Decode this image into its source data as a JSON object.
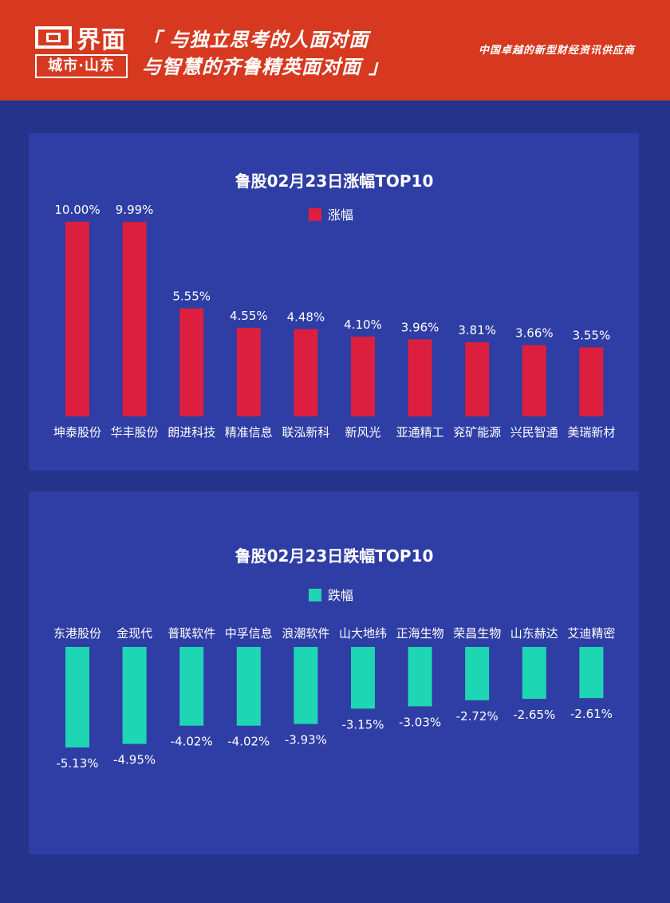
{
  "header": {
    "logo_name": "界面",
    "logo_sub": "城市·山东",
    "slogan_line1": "「 与独立思考的人面对面",
    "slogan_line2": "与智慧的齐鲁精英面对面 」",
    "tagline": "中国卓越的新型财经资讯供应商"
  },
  "colors": {
    "header_bg": "#d6391f",
    "page_bg": "#25348a",
    "panel_bg": "#2e3ea4",
    "gain_bar": "#dc1f3e",
    "loss_bar": "#1fd6b4"
  },
  "chart_data": [
    {
      "type": "bar",
      "title": "鲁股02月23日涨幅TOP10",
      "legend": "top-center",
      "series": [
        {
          "name": "涨幅",
          "values": [
            10.0,
            9.99,
            5.55,
            4.55,
            4.48,
            4.1,
            3.96,
            3.81,
            3.66,
            3.55
          ],
          "labels": [
            "10.00%",
            "9.99%",
            "5.55%",
            "4.55%",
            "4.48%",
            "4.10%",
            "3.96%",
            "3.81%",
            "3.66%",
            "3.55%"
          ]
        }
      ],
      "categories": [
        "坤泰股份",
        "华丰股份",
        "朗进科技",
        "精准信息",
        "联泓新科",
        "新风光",
        "亚通精工",
        "兖矿能源",
        "兴民智通",
        "美瑞新材"
      ],
      "ylim": [
        0,
        10
      ],
      "grid": false
    },
    {
      "type": "bar",
      "title": "鲁股02月23日跌幅TOP10",
      "legend": "top-center",
      "series": [
        {
          "name": "跌幅",
          "values": [
            -5.13,
            -4.95,
            -4.02,
            -4.02,
            -3.93,
            -3.15,
            -3.03,
            -2.72,
            -2.65,
            -2.61
          ],
          "labels": [
            "-5.13%",
            "-4.95%",
            "-4.02%",
            "-4.02%",
            "-3.93%",
            "-3.15%",
            "-3.03%",
            "-2.72%",
            "-2.65%",
            "-2.61%"
          ]
        }
      ],
      "categories": [
        "东港股份",
        "金现代",
        "普联软件",
        "中孚信息",
        "浪潮软件",
        "山大地纬",
        "正海生物",
        "荣昌生物",
        "山东赫达",
        "艾迪精密"
      ],
      "ylim": [
        -5.13,
        0
      ],
      "grid": false
    }
  ]
}
